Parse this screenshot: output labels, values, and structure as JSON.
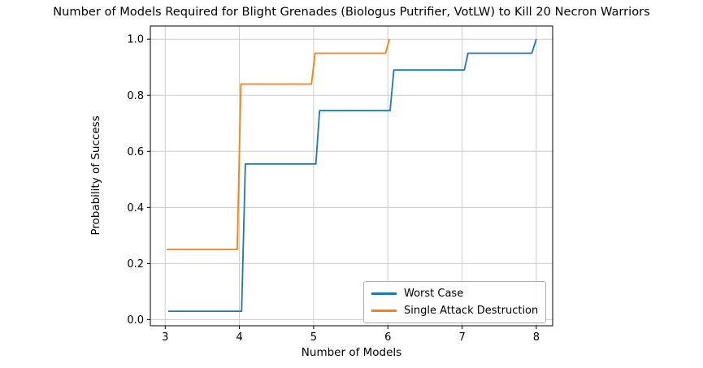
{
  "chart_data": {
    "type": "line",
    "subtype": "step",
    "title": "Number of Models Required for Blight Grenades (Biologus Putrifier, VotLW) to Kill 20 Necron Warriors",
    "xlabel": "Number of Models",
    "ylabel": "Probability of Success",
    "xlim": [
      2.8,
      8.22
    ],
    "ylim": [
      -0.022,
      1.047
    ],
    "xticks": [
      "3",
      "4",
      "5",
      "6",
      "7",
      "8"
    ],
    "yticks": [
      "0.0",
      "0.2",
      "0.4",
      "0.6",
      "0.8",
      "1.0"
    ],
    "grid": true,
    "legend_position": "lower right",
    "x": [
      3,
      4,
      5,
      6,
      7,
      8
    ],
    "series": [
      {
        "name": "Worst Case",
        "color": "#1f77b4",
        "values": [
          0.03,
          0.555,
          0.745,
          0.89,
          0.95,
          1.0
        ],
        "points": [
          [
            3.04,
            0.03
          ],
          [
            4.03,
            0.03
          ],
          [
            4.08,
            0.555
          ],
          [
            5.03,
            0.555
          ],
          [
            5.08,
            0.745
          ],
          [
            6.03,
            0.745
          ],
          [
            6.08,
            0.89
          ],
          [
            7.03,
            0.89
          ],
          [
            7.08,
            0.95
          ],
          [
            7.94,
            0.95
          ],
          [
            8.0,
            1.0
          ]
        ]
      },
      {
        "name": "Single Attack Destruction",
        "color": "#ff7f0e",
        "values": [
          0.25,
          0.84,
          0.95,
          1.0,
          null,
          null
        ],
        "points": [
          [
            3.02,
            0.25
          ],
          [
            3.97,
            0.25
          ],
          [
            4.02,
            0.84
          ],
          [
            4.97,
            0.84
          ],
          [
            5.02,
            0.95
          ],
          [
            5.97,
            0.95
          ],
          [
            6.02,
            1.0
          ]
        ]
      }
    ]
  },
  "style": {
    "grid_color": "#cccccc",
    "spine_color": "#000000",
    "tick_color": "#000000",
    "text_color": "#000000",
    "legend_border": "#b0b0b0"
  }
}
